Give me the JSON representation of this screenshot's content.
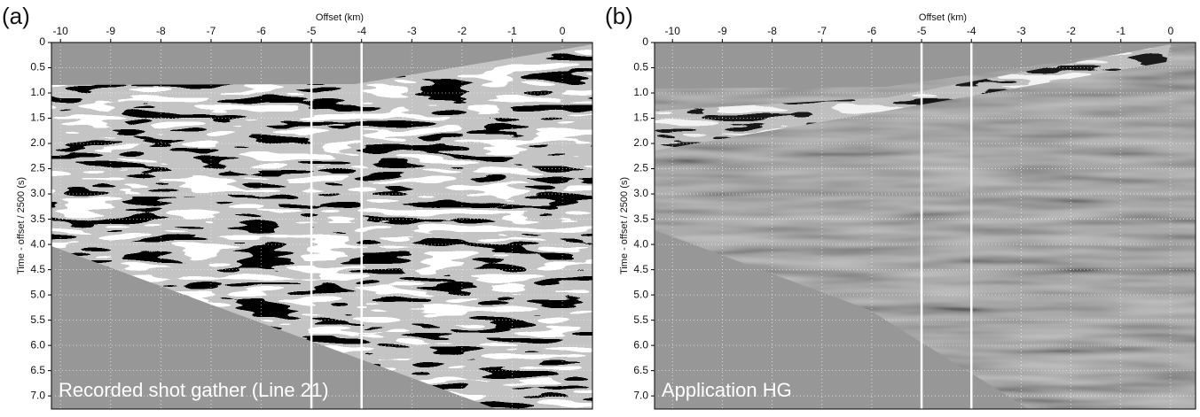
{
  "chart_data": [
    {
      "type": "seismic",
      "panel_label": "(a)",
      "xlabel": "Offset (km)",
      "ylabel": "Time - offset / 2500 (s)",
      "caption": "Recorded shot gather (Line 21)",
      "xlim": [
        -10.18,
        0.6
      ],
      "ylim": [
        0,
        7.26
      ],
      "xticks": [
        -10,
        -9,
        -8,
        -7,
        -6,
        -5,
        -4,
        -3,
        -2,
        -1,
        0
      ],
      "yticks": [
        0,
        0.5,
        {
          "value": 1,
          "label": "1.0"
        },
        1.5,
        {
          "value": 2,
          "label": "2.0"
        },
        2.5,
        {
          "value": 3,
          "label": "3.0"
        },
        3.5,
        {
          "value": 4,
          "label": "4.0"
        },
        4.5,
        {
          "value": 5,
          "label": "5.0"
        },
        5.5,
        {
          "value": 6,
          "label": "6.0"
        },
        6.5,
        {
          "value": 7,
          "label": "7.0"
        }
      ],
      "markers": [
        -5,
        -4
      ],
      "grid": true
    },
    {
      "type": "seismic",
      "panel_label": "(b)",
      "xlabel": "Offset (km)",
      "ylabel": "Time - offset / 2500 (s)",
      "caption": "Application HG",
      "xlim": [
        -10.36,
        0.5
      ],
      "ylim": [
        0,
        7.26
      ],
      "xticks": [
        -10,
        -9,
        -8,
        -7,
        -6,
        -5,
        -4,
        -3,
        -2,
        -1,
        0
      ],
      "yticks": [
        0,
        0.5,
        {
          "value": 1,
          "label": "1.0"
        },
        1.5,
        {
          "value": 2,
          "label": "2.0"
        },
        2.5,
        {
          "value": 3,
          "label": "3.0"
        },
        3.5,
        {
          "value": 4,
          "label": "4.0"
        },
        4.5,
        {
          "value": 5,
          "label": "5.0"
        },
        5.5,
        {
          "value": 6,
          "label": "6.0"
        },
        6.5,
        {
          "value": 7,
          "label": "7.0"
        }
      ],
      "markers": [
        -5,
        -4
      ],
      "grid": true
    }
  ]
}
